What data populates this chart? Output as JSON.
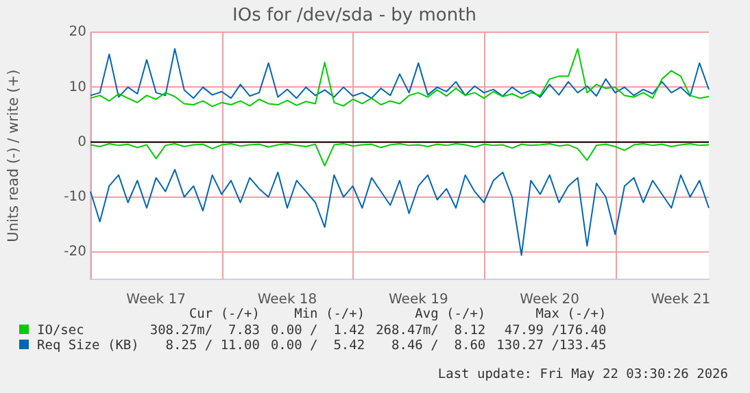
{
  "chart_data": {
    "type": "line",
    "title": "IOs for /dev/sda - by month",
    "ylabel": "Units read (-) / write (+)",
    "categories": [
      null,
      null,
      null,
      null,
      null,
      null,
      null,
      "Week 17",
      null,
      null,
      null,
      null,
      null,
      null,
      null,
      null,
      null,
      null,
      null,
      null,
      null,
      "Week 18",
      null,
      null,
      null,
      null,
      null,
      null,
      null,
      null,
      null,
      null,
      null,
      null,
      null,
      "Week 19",
      null,
      null,
      null,
      null,
      null,
      null,
      null,
      null,
      null,
      null,
      null,
      null,
      null,
      "Week 20",
      null,
      null,
      null,
      null,
      null,
      null,
      null,
      null,
      null,
      null,
      null,
      null,
      null,
      "Week 21",
      null,
      null,
      null
    ],
    "series": [
      {
        "name": "IO/sec",
        "color": "#00cc00",
        "values": [
          8,
          8.5,
          7.5,
          8.8,
          8,
          7.2,
          8.5,
          7.8,
          9,
          8.3,
          7,
          6.8,
          7.5,
          6.5,
          7.2,
          6.8,
          7.5,
          6.6,
          7.8,
          7,
          6.8,
          7.6,
          6.7,
          7.4,
          7,
          14.5,
          7.2,
          6.6,
          7.8,
          7,
          8,
          6.8,
          7.5,
          7,
          8.5,
          9,
          8.2,
          9.5,
          8.4,
          9.8,
          8.5,
          9,
          8,
          9.2,
          8.3,
          8.8,
          8,
          9,
          8.5,
          11.5,
          12,
          12,
          17,
          9,
          10.5,
          9.8,
          10,
          8.5,
          8.2,
          9,
          8,
          11.5,
          13,
          12,
          8.5,
          8,
          8.3
        ]
      },
      {
        "color": "#00cc00",
        "values": [
          -0.5,
          -0.8,
          -0.3,
          -0.6,
          -0.4,
          -1,
          -0.5,
          -3,
          -0.6,
          -0.3,
          -0.8,
          -0.5,
          -0.4,
          -1.2,
          -0.5,
          -0.3,
          -0.7,
          -0.5,
          -0.4,
          -0.9,
          -0.5,
          -0.3,
          -0.6,
          -0.8,
          -0.4,
          -4.3,
          -0.5,
          -0.3,
          -0.7,
          -0.5,
          -0.4,
          -1,
          -0.5,
          -0.3,
          -0.6,
          -0.5,
          -0.8,
          -0.4,
          -0.6,
          -0.3,
          -0.5,
          -0.9,
          -0.4,
          -0.6,
          -0.5,
          -1.1,
          -0.4,
          -0.6,
          -0.5,
          -0.3,
          -0.7,
          -0.5,
          -1.2,
          -3.3,
          -0.6,
          -0.4,
          -0.8,
          -1.5,
          -0.5,
          -0.3,
          -0.6,
          -0.4,
          -0.8,
          -0.5,
          -0.3,
          -0.6,
          -0.5
        ]
      },
      {
        "name": "Req Size (KB)",
        "color": "#0066b3",
        "values": [
          8.5,
          9,
          16,
          8.2,
          10,
          8.8,
          15,
          9,
          8.5,
          17,
          9.5,
          8,
          10,
          8.6,
          9.2,
          8,
          10.5,
          8.4,
          9,
          14.4,
          8.2,
          9.6,
          8,
          10,
          8.5,
          9.5,
          8.2,
          10,
          8.4,
          9,
          8,
          9.8,
          8.5,
          12.4,
          9,
          14.4,
          8.6,
          10,
          9.2,
          11,
          8.5,
          10.2,
          9,
          9.6,
          8.4,
          10,
          8.8,
          9.4,
          8.2,
          10.5,
          8.6,
          11,
          9,
          10.2,
          8.4,
          11.5,
          9,
          10,
          8.5,
          9.6,
          8.8,
          11,
          9,
          10,
          8.4,
          14.4,
          9.6
        ]
      },
      {
        "color": "#0066b3",
        "values": [
          -9,
          -14.5,
          -8,
          -6,
          -11,
          -7,
          -12,
          -6.5,
          -9,
          -5,
          -10,
          -8,
          -12.5,
          -6,
          -9.5,
          -7,
          -11,
          -6.5,
          -8.5,
          -10,
          -5.5,
          -12,
          -7,
          -9,
          -11,
          -15.5,
          -6,
          -10,
          -8,
          -12,
          -6.5,
          -9,
          -11.5,
          -7,
          -13,
          -8,
          -6,
          -10.5,
          -8.5,
          -12,
          -6,
          -9,
          -11,
          -7,
          -5.5,
          -10,
          -20.6,
          -7,
          -9.5,
          -6,
          -11,
          -8,
          -6.5,
          -18.9,
          -7.5,
          -10,
          -16.8,
          -8,
          -6.5,
          -11,
          -7,
          -9.5,
          -12,
          -6,
          -10,
          -7,
          -12
        ]
      }
    ],
    "ylim": [
      -25,
      20
    ],
    "yticks": [
      -20,
      -10,
      0,
      10,
      20
    ],
    "ref_lines": [
      {
        "axis": "y",
        "value": 0,
        "color": "#000000"
      }
    ],
    "grid": true,
    "legend": "bottom",
    "marker": "none",
    "line_style": "solid",
    "annotations": [
      "Cur (-/+)",
      "Min (-/+)",
      "Avg (-/+)",
      "Max (-/+)",
      "308.27m/  7.83",
      "0.00 /  1.42",
      "268.47m/  8.12",
      "47.99 /176.40",
      "8.25 / 11.00",
      "0.00 /  5.42",
      "8.46 /  8.60",
      "130.27 /133.45",
      "Last update: Fri May 22 03:30:26 2026"
    ]
  }
}
